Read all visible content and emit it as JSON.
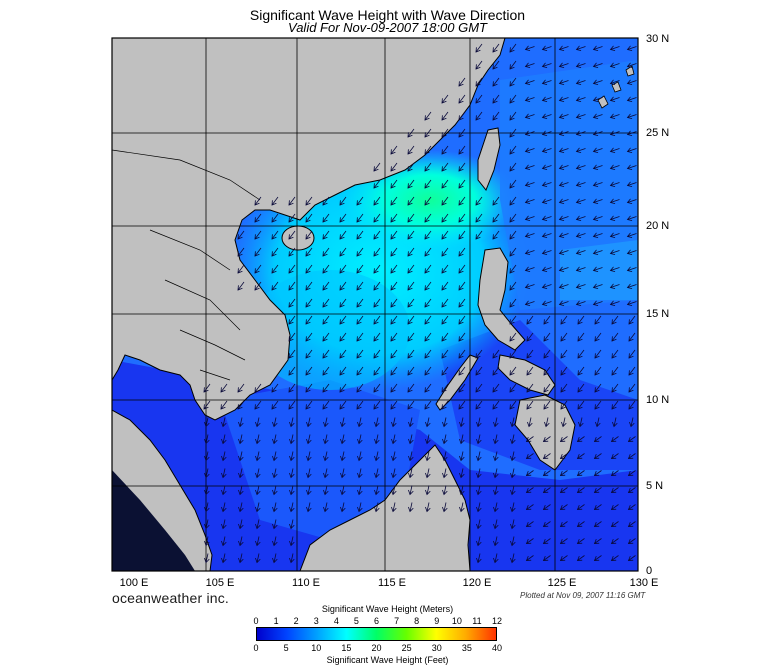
{
  "title": "Significant Wave Height with Wave Direction",
  "subtitle": "Valid For Nov-09-2007 18:00 GMT",
  "brand": "oceanweather inc.",
  "plotted": "Plotted at Nov 09, 2007 11:16 GMT",
  "lat_labels": [
    "30 N",
    "25 N",
    "20 N",
    "15 N",
    "10 N",
    "5 N",
    "0"
  ],
  "lon_labels": [
    "100 E",
    "105 E",
    "110 E",
    "115 E",
    "120 E",
    "125 E",
    "130 E"
  ],
  "colorbar": {
    "top_title": "Significant Wave Height (Meters)",
    "bottom_title": "Significant Wave Height (Feet)",
    "meters_ticks": [
      "0",
      "1",
      "2",
      "3",
      "4",
      "5",
      "6",
      "7",
      "8",
      "9",
      "10",
      "11",
      "12"
    ],
    "feet_ticks": [
      "0",
      "5",
      "10",
      "15",
      "20",
      "25",
      "30",
      "35",
      "40"
    ],
    "gradient_colors": [
      "#0000cc",
      "#0044ff",
      "#00a0ff",
      "#00ffff",
      "#00ff66",
      "#66ff00",
      "#ffff00",
      "#ffaa00",
      "#ff3300"
    ]
  },
  "colors": {
    "land": "#c0c0c0",
    "deep_water": "#1a3cf5",
    "mid_water": "#1f7cff",
    "light_water": "#00e0ff",
    "peak_water": "#00ff99",
    "grid": "#000000"
  }
}
